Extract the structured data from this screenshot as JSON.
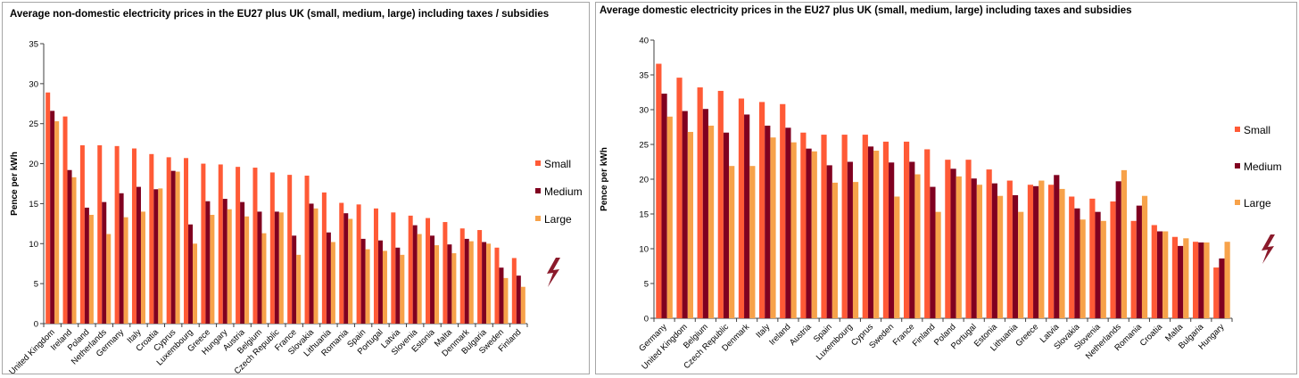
{
  "colors": {
    "small": "#ff5a36",
    "medium": "#800020",
    "large": "#f7a24a",
    "axis": "#404040",
    "bolt": "#8b1a2b"
  },
  "chart_data": [
    {
      "type": "bar",
      "title": "Average non-domestic electricity prices in the EU27 plus UK (small, medium, large) including taxes / subsidies",
      "xlabel": "",
      "ylabel": "Pence per kWh",
      "ylim": [
        0,
        35
      ],
      "yticks": [
        0,
        5,
        10,
        15,
        20,
        25,
        30,
        35
      ],
      "grid": false,
      "legend_position": "right",
      "categories": [
        "United Kingdom",
        "Ireland",
        "Poland",
        "Netherlands",
        "Germany",
        "Italy",
        "Croatia",
        "Cyprus",
        "Luxembourg",
        "Greece",
        "Hungary",
        "Austria",
        "Belgium",
        "Czech Republic",
        "France",
        "Slovakia",
        "Lithuania",
        "Romania",
        "Spain",
        "Portugal",
        "Latvia",
        "Slovenia",
        "Estonia",
        "Malta",
        "Denmark",
        "Bulgaria",
        "Sweden",
        "Finland"
      ],
      "series": [
        {
          "name": "Small",
          "values": [
            28.9,
            25.9,
            22.3,
            22.3,
            22.2,
            21.9,
            21.2,
            20.8,
            20.7,
            20.0,
            19.9,
            19.6,
            19.5,
            18.9,
            18.6,
            18.5,
            16.4,
            15.1,
            14.9,
            14.4,
            13.9,
            13.5,
            13.2,
            12.7,
            11.9,
            11.7,
            9.5,
            8.2
          ]
        },
        {
          "name": "Medium",
          "values": [
            26.6,
            19.2,
            14.5,
            15.2,
            16.3,
            17.1,
            16.8,
            19.1,
            12.4,
            15.3,
            15.6,
            15.2,
            14.0,
            14.0,
            11.0,
            15.0,
            11.4,
            13.8,
            10.6,
            10.4,
            9.5,
            12.3,
            11.0,
            9.9,
            10.6,
            10.2,
            7.0,
            6.0
          ]
        },
        {
          "name": "Large",
          "values": [
            25.3,
            18.3,
            13.6,
            11.2,
            13.3,
            14.0,
            16.9,
            19.0,
            10.0,
            13.6,
            14.3,
            13.4,
            11.3,
            13.9,
            8.6,
            14.4,
            10.2,
            13.1,
            9.3,
            9.1,
            8.6,
            11.2,
            9.8,
            8.8,
            10.3,
            10.0,
            5.7,
            4.6
          ]
        }
      ]
    },
    {
      "type": "bar",
      "title": "Average domestic electricity prices in the EU27 plus UK (small, medium, large) including taxes and subsidies",
      "xlabel": "",
      "ylabel": "Pence per kWh",
      "ylim": [
        0,
        40
      ],
      "yticks": [
        0,
        5,
        10,
        15,
        20,
        25,
        30,
        35,
        40
      ],
      "grid": false,
      "legend_position": "right",
      "categories": [
        "Germany",
        "United Kingdom",
        "Belgium",
        "Czech Republic",
        "Denmark",
        "Italy",
        "Ireland",
        "Austria",
        "Spain",
        "Luxembourg",
        "Cyprus",
        "Sweden",
        "France",
        "Finland",
        "Poland",
        "Portugal",
        "Estonia",
        "Lithuania",
        "Greece",
        "Latvia",
        "Slovakia",
        "Slovenia",
        "Netherlands",
        "Romania",
        "Croatia",
        "Malta",
        "Bulgaria",
        "Hungary"
      ],
      "series": [
        {
          "name": "Small",
          "values": [
            36.6,
            34.6,
            33.2,
            32.7,
            31.6,
            31.1,
            30.8,
            26.7,
            26.4,
            26.4,
            26.4,
            25.4,
            25.4,
            24.3,
            22.8,
            22.8,
            21.4,
            19.8,
            19.2,
            19.2,
            17.5,
            17.2,
            16.8,
            14.0,
            13.4,
            11.7,
            11.0,
            7.3
          ]
        },
        {
          "name": "Medium",
          "values": [
            32.3,
            29.8,
            30.1,
            26.7,
            29.3,
            27.7,
            27.4,
            24.4,
            22.0,
            22.5,
            24.7,
            22.4,
            22.5,
            18.9,
            21.5,
            20.1,
            19.4,
            17.7,
            19.0,
            20.6,
            15.8,
            15.3,
            19.7,
            16.2,
            12.5,
            10.4,
            10.9,
            8.6
          ]
        },
        {
          "name": "Large",
          "values": [
            29.0,
            26.8,
            27.7,
            21.9,
            21.9,
            26.0,
            25.3,
            24.0,
            19.5,
            19.6,
            24.1,
            17.5,
            20.7,
            15.3,
            20.4,
            19.2,
            17.6,
            15.3,
            19.8,
            18.6,
            14.2,
            14.0,
            21.3,
            17.6,
            12.5,
            11.5,
            10.9,
            11.0
          ]
        }
      ]
    }
  ]
}
